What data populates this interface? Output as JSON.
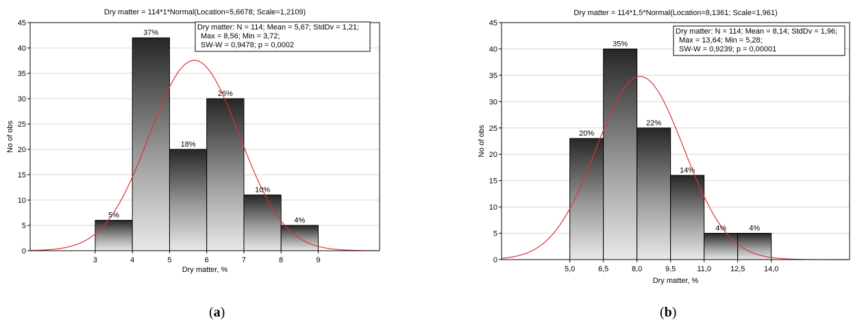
{
  "captions": [
    {
      "open": "(",
      "letter": "a",
      "close": ")"
    },
    {
      "open": "(",
      "letter": "b",
      "close": ")"
    }
  ],
  "chart_data": [
    {
      "type": "bar",
      "title": "Dry matter = 114*1*Normal(Location=5,6678; Scale=1,2109)",
      "xlabel": "Dry matter, %",
      "ylabel": "No of obs",
      "bins": [
        [
          3,
          4
        ],
        [
          4,
          5
        ],
        [
          5,
          6
        ],
        [
          6,
          7
        ],
        [
          7,
          8
        ],
        [
          8,
          9
        ]
      ],
      "values": [
        6,
        42,
        20,
        30,
        11,
        5
      ],
      "bar_labels": [
        "5%",
        "37%",
        "18%",
        "26%",
        "10%",
        "4%"
      ],
      "x_ticks": [
        "3",
        "4",
        "5",
        "6",
        "7",
        "8",
        "9"
      ],
      "y_ticks": [
        "0",
        "5",
        "10",
        "15",
        "20",
        "25",
        "30",
        "35",
        "40",
        "45"
      ],
      "xlim": [
        1.25,
        10.65
      ],
      "ylim": [
        0,
        45
      ],
      "fit": {
        "type": "normal",
        "n": 114,
        "binwidth": 1,
        "mean": 5.6678,
        "sd": 1.2109,
        "color": "#e03030"
      },
      "stats": [
        "Dry matter: N = 114; Mean = 5,67; StdDv = 1,21;",
        "Max = 8,56; Min = 3,72;",
        "SW-W = 0,9478; p = 0,0002"
      ],
      "grid": true
    },
    {
      "type": "bar",
      "title": "Dry matter = 114*1,5*Normal(Location=8,1361; Scale=1,961)",
      "xlabel": "Dry matter, %",
      "ylabel": "No of obs",
      "bins": [
        [
          5.0,
          6.5
        ],
        [
          6.5,
          8.0
        ],
        [
          8.0,
          9.5
        ],
        [
          9.5,
          11.0
        ],
        [
          11.0,
          12.5
        ],
        [
          12.5,
          14.0
        ]
      ],
      "values": [
        23,
        40,
        25,
        16,
        5,
        5
      ],
      "bar_labels": [
        "20%",
        "35%",
        "22%",
        "14%",
        "4%",
        "4%"
      ],
      "x_ticks": [
        "5,0",
        "6,5",
        "8,0",
        "9,5",
        "11,0",
        "12,5",
        "14,0"
      ],
      "y_ticks": [
        "0",
        "5",
        "10",
        "15",
        "20",
        "25",
        "30",
        "35",
        "40",
        "45"
      ],
      "xlim": [
        1.95,
        17.5
      ],
      "ylim": [
        0,
        45
      ],
      "fit": {
        "type": "normal",
        "n": 114,
        "binwidth": 1.5,
        "mean": 8.1361,
        "sd": 1.961,
        "color": "#e03030"
      },
      "stats": [
        "Dry matter: N = 114; Mean = 8,14; StdDv = 1,96;",
        "Max = 13,64; Min = 5,28;",
        "SW-W = 0,9239; p = 0,00001"
      ],
      "grid": true
    }
  ]
}
